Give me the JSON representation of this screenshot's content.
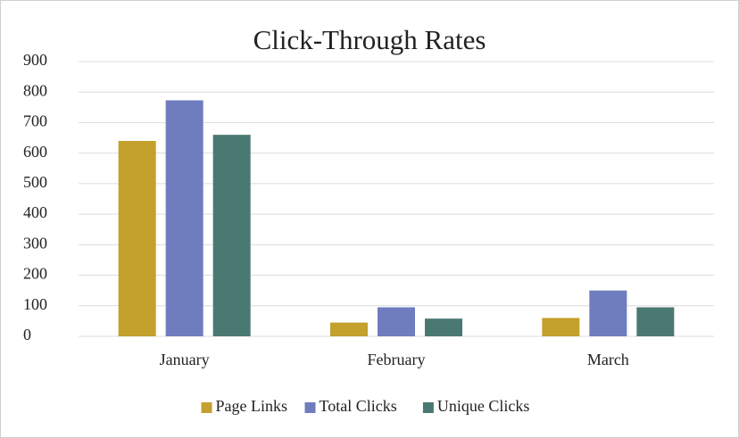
{
  "chart_data": {
    "type": "bar",
    "title": "Click-Through Rates",
    "categories": [
      "January",
      "February",
      "March"
    ],
    "series": [
      {
        "name": "Page Links",
        "color": "#c4a02c",
        "values": [
          640,
          45,
          60
        ]
      },
      {
        "name": "Total Clicks",
        "color": "#6f7cbd",
        "values": [
          773,
          95,
          150
        ]
      },
      {
        "name": "Unique Clicks",
        "color": "#4a7873",
        "values": [
          660,
          58,
          95
        ]
      }
    ],
    "ylim": [
      0,
      900
    ],
    "yticks": [
      0,
      100,
      200,
      300,
      400,
      500,
      600,
      700,
      800,
      900
    ],
    "grid": true,
    "legend": "bottom"
  }
}
